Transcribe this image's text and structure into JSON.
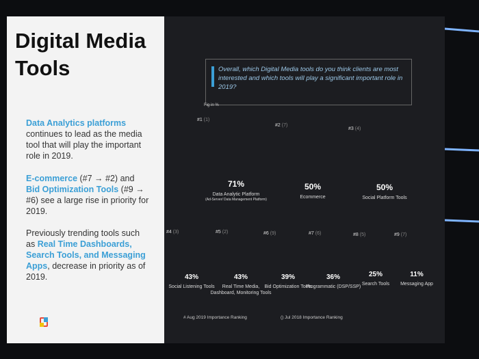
{
  "sidebar": {
    "title": "Digital Media Tools",
    "accent_color": "#3b9fd6",
    "paragraphs": [
      [
        {
          "text": "Data Analytics platforms",
          "accent": true
        },
        {
          "text": " continues to lead as the media tool that will play the important role in 2019."
        }
      ],
      [
        {
          "text": "E-commerce",
          "accent": true
        },
        {
          "text": " (#7 → #2) and "
        },
        {
          "text": "Bid Optimization Tools",
          "accent": true
        },
        {
          "text": " (#9 → #6) see a large rise in priority for 2019."
        }
      ],
      [
        {
          "text": "Previously trending tools such as "
        },
        {
          "text": "Real Time Dashboards, Search Tools, and Messaging Apps",
          "accent": true
        },
        {
          "text": ", decrease in priority as of 2019."
        }
      ]
    ]
  },
  "question": "Overall, which Digital Media tools do you think clients are most interested and which tools will play a significant important role in 2019?",
  "unit_note": "Fig in %",
  "wedge_color": "#4ea9da",
  "pies": [
    {
      "rank": "#1",
      "previous": "(1)",
      "value": 71,
      "value_label": "71%",
      "label": "Data Analytic Platform",
      "sublabel": "(Ad-Server/ Data Management Platform)"
    },
    {
      "rank": "#2",
      "previous": "(7)",
      "value": 50,
      "value_label": "50%",
      "label": "Ecommerce"
    },
    {
      "rank": "#3",
      "previous": "(4)",
      "value": 50,
      "value_label": "50%",
      "label": "Social Platform Tools"
    },
    {
      "rank": "#4",
      "previous": "(3)",
      "value": 43,
      "value_label": "43%",
      "label": "Social Listening Tools"
    },
    {
      "rank": "#5",
      "previous": "(2)",
      "value": 43,
      "value_label": "43%",
      "label": "Real Time Media, Dashboard, Monitoring Tools"
    },
    {
      "rank": "#6",
      "previous": "(9)",
      "value": 39,
      "value_label": "39%",
      "label": "Bid Optimization Tools"
    },
    {
      "rank": "#7",
      "previous": "(6)",
      "value": 36,
      "value_label": "36%",
      "label": "Programmatic (DSP/SSP)"
    },
    {
      "rank": "#8",
      "previous": "(5)",
      "value": 25,
      "value_label": "25%",
      "label": "Search Tools"
    },
    {
      "rank": "#9",
      "previous": "(7)",
      "value": 11,
      "value_label": "11%",
      "label": "Messaging App"
    }
  ],
  "footnotes": [
    "# Aug 2019 Importance Ranking",
    "() Jul 2018 Importance Ranking"
  ]
}
